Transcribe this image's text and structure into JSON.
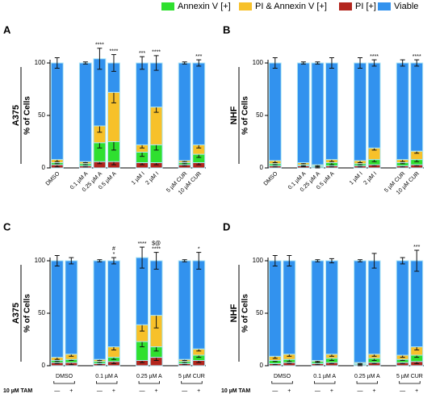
{
  "legend": [
    {
      "name": "Annexin V [+]",
      "color": "#2fe02f"
    },
    {
      "name": "PI & Annexin V [+]",
      "color": "#f7c12a"
    },
    {
      "name": "PI [+]",
      "color": "#b3261e"
    },
    {
      "name": "Viable",
      "color": "#3292ee"
    }
  ],
  "chart_data": [
    {
      "type": "bar",
      "panel": "A",
      "cell_line": "A375",
      "ylabel": "% of Cells",
      "ylim": [
        0,
        110
      ],
      "yticks": [
        0,
        50,
        100
      ],
      "categories": [
        "DMSO",
        null,
        "0.1 µM A",
        "0.25 µM A",
        "0.5 µM A",
        null,
        "1 µM I",
        "2 µM I",
        null,
        "5 µM CUR",
        "10 µM CUR"
      ],
      "series": [
        {
          "legend": 2,
          "values": [
            3,
            null,
            2,
            6,
            6,
            null,
            5,
            5,
            null,
            3,
            5
          ],
          "errors": [
            2,
            null,
            1,
            2,
            3,
            null,
            2,
            2,
            null,
            1,
            2
          ]
        },
        {
          "legend": 0,
          "values": [
            2,
            null,
            2,
            18,
            19,
            null,
            10,
            17,
            null,
            2,
            8
          ],
          "errors": [
            1,
            null,
            1,
            5,
            8,
            null,
            4,
            5,
            null,
            1,
            3
          ]
        },
        {
          "legend": 1,
          "values": [
            3,
            null,
            2,
            16,
            47,
            null,
            7,
            36,
            null,
            2,
            9
          ],
          "errors": [
            2,
            null,
            1,
            6,
            10,
            null,
            3,
            5,
            null,
            1,
            3
          ]
        },
        {
          "legend": 3,
          "values": [
            92,
            null,
            94,
            64,
            28,
            null,
            78,
            42,
            null,
            93,
            78
          ],
          "errors": [
            5,
            null,
            1,
            10,
            8,
            null,
            6,
            7,
            null,
            1,
            3
          ]
        }
      ],
      "annotations": [
        null,
        null,
        null,
        [
          "****"
        ],
        [
          "****"
        ],
        null,
        [
          "***"
        ],
        [
          "****"
        ],
        null,
        null,
        [
          "***"
        ]
      ]
    },
    {
      "type": "bar",
      "panel": "B",
      "cell_line": "NHF",
      "ylabel": "% of Cells",
      "ylim": [
        0,
        110
      ],
      "yticks": [
        0,
        50,
        100
      ],
      "categories": [
        "DMSO",
        null,
        "0.1 µM A",
        "0.25 µM A",
        "0.5 µM A",
        null,
        "1 µM I",
        "2 µM I",
        null,
        "5 µM CUR",
        "10 µM CUR"
      ],
      "series": [
        {
          "legend": 2,
          "values": [
            2,
            null,
            2,
            1,
            2,
            null,
            2,
            3,
            null,
            2,
            3
          ],
          "errors": [
            1,
            null,
            1,
            1,
            1,
            null,
            1,
            1,
            null,
            1,
            1
          ]
        },
        {
          "legend": 0,
          "values": [
            2,
            null,
            1,
            1,
            3,
            null,
            2,
            5,
            null,
            3,
            5
          ],
          "errors": [
            1,
            null,
            1,
            1,
            2,
            null,
            1,
            2,
            null,
            1,
            2
          ]
        },
        {
          "legend": 1,
          "values": [
            3,
            null,
            2,
            1,
            3,
            null,
            3,
            11,
            null,
            3,
            8
          ],
          "errors": [
            2,
            null,
            1,
            1,
            2,
            null,
            2,
            2,
            null,
            2,
            2
          ]
        },
        {
          "legend": 3,
          "values": [
            93,
            null,
            95,
            97,
            92,
            null,
            93,
            81,
            null,
            92,
            84
          ],
          "errors": [
            5,
            null,
            1,
            1,
            5,
            null,
            5,
            3,
            null,
            3,
            3
          ]
        }
      ],
      "annotations": [
        null,
        null,
        null,
        null,
        null,
        null,
        null,
        [
          "****"
        ],
        null,
        null,
        [
          "****"
        ]
      ]
    },
    {
      "type": "bar",
      "panel": "C",
      "cell_line": "A375",
      "ylabel": "% of Cells",
      "ylim": [
        0,
        110
      ],
      "yticks": [
        0,
        50,
        100
      ],
      "treatment": "10 µM TAM",
      "groups": [
        "DMSO",
        "0.1 µM A",
        "0.25 µM A",
        "5 µM CUR"
      ],
      "categories": [
        "—",
        "+",
        null,
        "—",
        "+",
        null,
        "—",
        "+",
        null,
        "—",
        "+"
      ],
      "series": [
        {
          "legend": 2,
          "values": [
            3,
            3,
            null,
            2,
            4,
            null,
            5,
            8,
            null,
            2,
            5
          ],
          "errors": [
            1,
            2,
            null,
            1,
            2,
            null,
            2,
            3,
            null,
            1,
            2
          ]
        },
        {
          "legend": 0,
          "values": [
            2,
            3,
            null,
            2,
            4,
            null,
            18,
            10,
            null,
            2,
            5
          ],
          "errors": [
            1,
            1,
            null,
            1,
            2,
            null,
            5,
            4,
            null,
            1,
            2
          ]
        },
        {
          "legend": 1,
          "values": [
            3,
            5,
            null,
            2,
            10,
            null,
            16,
            30,
            null,
            2,
            6
          ],
          "errors": [
            2,
            2,
            null,
            1,
            3,
            null,
            6,
            12,
            null,
            1,
            2
          ]
        },
        {
          "legend": 3,
          "values": [
            92,
            89,
            null,
            94,
            82,
            null,
            64,
            52,
            null,
            94,
            84
          ],
          "errors": [
            5,
            3,
            null,
            1,
            3,
            null,
            10,
            8,
            null,
            1,
            8
          ]
        }
      ],
      "annotations": [
        null,
        null,
        null,
        null,
        [
          "#",
          "*"
        ],
        null,
        [
          "****"
        ],
        [
          "$@",
          "****"
        ],
        null,
        null,
        [
          "*"
        ]
      ]
    },
    {
      "type": "bar",
      "panel": "D",
      "cell_line": "NHF",
      "ylabel": "% of Cells",
      "ylim": [
        0,
        110
      ],
      "yticks": [
        0,
        50,
        100
      ],
      "treatment": "10 µM TAM",
      "groups": [
        "DMSO",
        "0.1 µM A",
        "0.25 µM A",
        "5 µM CUR"
      ],
      "categories": [
        "—",
        "+",
        null,
        "—",
        "+",
        null,
        "—",
        "+",
        null,
        "—",
        "+"
      ],
      "series": [
        {
          "legend": 2,
          "values": [
            2,
            3,
            null,
            2,
            3,
            null,
            1,
            3,
            null,
            3,
            4
          ],
          "errors": [
            1,
            1,
            null,
            1,
            1,
            null,
            1,
            1,
            null,
            1,
            2
          ]
        },
        {
          "legend": 0,
          "values": [
            3,
            3,
            null,
            2,
            4,
            null,
            1,
            4,
            null,
            3,
            6
          ],
          "errors": [
            1,
            2,
            null,
            1,
            2,
            null,
            1,
            2,
            null,
            1,
            2
          ]
        },
        {
          "legend": 1,
          "values": [
            4,
            5,
            null,
            1,
            4,
            null,
            1,
            4,
            null,
            4,
            8
          ],
          "errors": [
            2,
            2,
            null,
            1,
            2,
            null,
            1,
            2,
            null,
            2,
            3
          ]
        },
        {
          "legend": 3,
          "values": [
            91,
            89,
            null,
            95,
            89,
            null,
            97,
            89,
            null,
            90,
            82
          ],
          "errors": [
            5,
            5,
            null,
            1,
            2,
            null,
            1,
            7,
            null,
            3,
            10
          ]
        }
      ],
      "annotations": [
        null,
        null,
        null,
        null,
        null,
        null,
        null,
        null,
        null,
        null,
        [
          "***"
        ]
      ]
    }
  ]
}
